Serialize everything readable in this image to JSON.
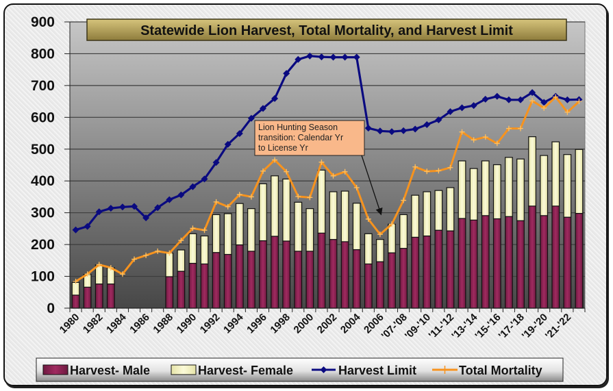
{
  "chart_data": {
    "type": "bar",
    "title": "Statewide Lion Harvest, Total Mortality, and Harvest Limit",
    "xlabel": "",
    "ylabel": "",
    "ylim": [
      0,
      900
    ],
    "y_ticks": [
      "0",
      "100",
      "200",
      "300",
      "400",
      "500",
      "600",
      "700",
      "800",
      "900"
    ],
    "grid": true,
    "legend_position": "bottom",
    "x_tick_labels": [
      "1980",
      "1982",
      "1984",
      "1986",
      "1988",
      "1990",
      "1992",
      "1994",
      "1996",
      "1998",
      "2000",
      "2002",
      "2004",
      "2006",
      "'07-'08",
      "'09-'10",
      "'11-'12",
      "'13-'14",
      "'15-'16",
      "'17-'18",
      "'19-'20",
      "'21-'22"
    ],
    "category_count": 44,
    "series": [
      {
        "name": "Harvest- Male",
        "kind": "stacked-bar",
        "color": "#8b2252",
        "values": [
          41,
          66,
          76,
          76,
          null,
          null,
          null,
          null,
          99,
          116,
          141,
          139,
          175,
          169,
          199,
          179,
          212,
          226,
          211,
          179,
          179,
          236,
          216,
          209,
          184,
          139,
          146,
          174,
          188,
          223,
          227,
          245,
          243,
          282,
          277,
          291,
          281,
          288,
          275,
          321,
          291,
          321,
          286,
          298
        ]
      },
      {
        "name": "Harvest- Female",
        "kind": "stacked-bar",
        "color": "#f5f3c0",
        "values": [
          40,
          40,
          60,
          51,
          null,
          null,
          null,
          null,
          74,
          67,
          93,
          88,
          119,
          128,
          130,
          134,
          179,
          190,
          195,
          154,
          134,
          198,
          150,
          159,
          146,
          95,
          70,
          90,
          106,
          132,
          139,
          125,
          136,
          181,
          162,
          172,
          170,
          186,
          194,
          218,
          189,
          202,
          197,
          201
        ]
      },
      {
        "name": "Harvest Limit",
        "kind": "line",
        "color": "#0a0a80",
        "values": [
          246,
          257,
          303,
          314,
          318,
          320,
          284,
          316,
          341,
          356,
          382,
          406,
          458,
          515,
          549,
          597,
          628,
          659,
          738,
          782,
          793,
          790,
          789,
          789,
          789,
          566,
          557,
          555,
          558,
          563,
          577,
          592,
          618,
          630,
          637,
          657,
          666,
          655,
          655,
          678,
          647,
          666,
          655,
          656
        ]
      },
      {
        "name": "Total Mortality",
        "kind": "line",
        "color": "#f7931e",
        "values": [
          84,
          107,
          137,
          127,
          107,
          154,
          166,
          179,
          173,
          213,
          251,
          245,
          334,
          319,
          357,
          350,
          431,
          466,
          429,
          351,
          348,
          459,
          416,
          429,
          379,
          280,
          232,
          264,
          339,
          444,
          430,
          432,
          442,
          554,
          529,
          538,
          518,
          565,
          565,
          652,
          629,
          664,
          616,
          650
        ]
      }
    ],
    "annotation": {
      "lines": [
        "Lion Hunting Season",
        "transition: Calendar Yr",
        "to License Yr"
      ],
      "points_to_category_index": 26
    }
  },
  "colors": {
    "plot_top": "#c4c4c4",
    "plot_bottom": "#4a4a4a",
    "title_bg": "#b8a560",
    "annotation_bg": "#f9b88a"
  }
}
